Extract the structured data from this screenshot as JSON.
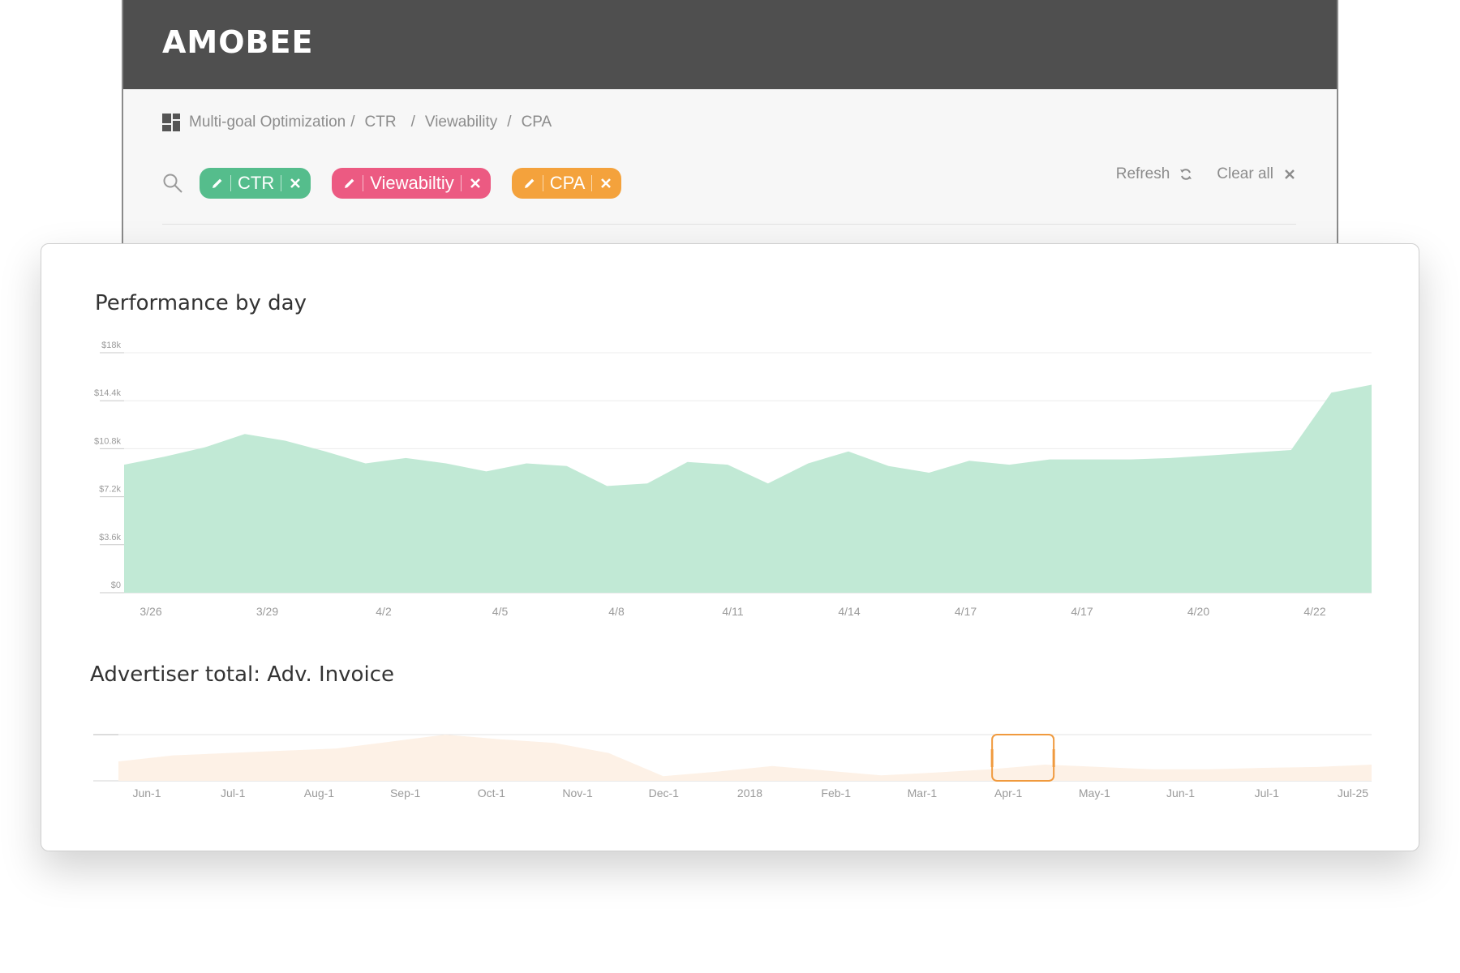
{
  "header": {
    "brand": "AMOBEE"
  },
  "breadcrumb": {
    "icon": "dashboard-icon",
    "items": [
      "Multi-goal Optimization",
      "CTR",
      "Viewability",
      "CPA"
    ],
    "separator": "/"
  },
  "filters": {
    "search_icon": "search-icon",
    "chips": [
      {
        "label": "CTR",
        "color": "#55bd8c"
      },
      {
        "label": "Viewabiltiy",
        "color": "#ec5a82"
      },
      {
        "label": "CPA",
        "color": "#f4a23c"
      }
    ],
    "refresh_label": "Refresh",
    "clear_all_label": "Clear all"
  },
  "chart_data": [
    {
      "type": "area",
      "title": "Performance by day",
      "color": "#c1e9d5",
      "y_ticks": [
        "$0",
        "$3.6k",
        "$7.2k",
        "$10.8k",
        "$14.4k",
        "$18k"
      ],
      "ylim": [
        0,
        18000
      ],
      "x_tick_labels": [
        "3/26",
        "3/29",
        "4/2",
        "4/5",
        "4/8",
        "4/11",
        "4/14",
        "4/17",
        "4/17",
        "4/20",
        "4/22"
      ],
      "grid": true,
      "values": [
        9600,
        10200,
        10900,
        11900,
        11400,
        10600,
        9700,
        10100,
        9700,
        9100,
        9700,
        9500,
        8000,
        8200,
        9800,
        9600,
        8200,
        9700,
        10600,
        9500,
        9000,
        9900,
        9600,
        10000,
        10000,
        10000,
        10100,
        10300,
        10500,
        10700,
        15000,
        15600
      ]
    },
    {
      "type": "area",
      "title": "Advertiser total: Adv. Invoice",
      "color": "#fdf1e6",
      "x_tick_labels": [
        "Jun-1",
        "Jul-1",
        "Aug-1",
        "Sep-1",
        "Oct-1",
        "Nov-1",
        "Dec-1",
        "2018",
        "Feb-1",
        "Mar-1",
        "Apr-1",
        "May-1",
        "Jun-1",
        "Jul-1",
        "Jul-25"
      ],
      "values": [
        0.42,
        0.55,
        0.6,
        0.65,
        0.7,
        0.85,
        1.0,
        0.9,
        0.82,
        0.6,
        0.1,
        0.2,
        0.32,
        0.22,
        0.12,
        0.18,
        0.25,
        0.35,
        0.3,
        0.25,
        0.25,
        0.28,
        0.3,
        0.35
      ],
      "selection_color": "#f09a3e",
      "selection_range": [
        "Apr-1",
        "Apr-22"
      ]
    }
  ]
}
